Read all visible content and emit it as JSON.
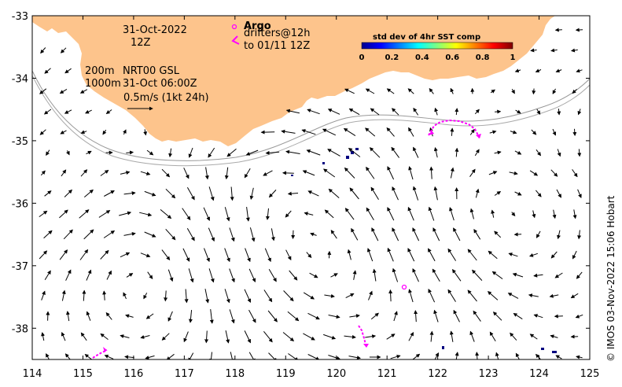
{
  "map": {
    "date": "31-Oct-2022",
    "hour": "12Z",
    "depth_shallow": "200m",
    "depth_deep": "1000m",
    "product": "NRT00 GSL",
    "analysis_time": "31-Oct 06:00Z",
    "scale_label": "0.5m/s (1kt 24h)",
    "argo_label": "Argo",
    "drifters_label": "drifters@12h",
    "drifters_to": "to 01/11 12Z",
    "colorbar_title": "std dev of 4hr SST comp",
    "colorbar_ticks": [
      "0",
      "0.2",
      "0.4",
      "0.6",
      "0.8",
      "1"
    ],
    "credit": "© IMOS 03-Nov-2022 15:06 Hobart",
    "land_color": "#FDC48C",
    "argo_color": "#FF00FF",
    "drifter_color": "#FF00FF",
    "xaxis_ticks": [
      "114",
      "115",
      "116",
      "117",
      "118",
      "119",
      "120",
      "121",
      "122",
      "123",
      "124",
      "125"
    ],
    "yaxis_ticks": [
      "-33",
      "-34",
      "-35",
      "-36",
      "-37",
      "-38"
    ],
    "lon_range": [
      114,
      125
    ],
    "lat_range": [
      -38.5,
      -33
    ]
  }
}
